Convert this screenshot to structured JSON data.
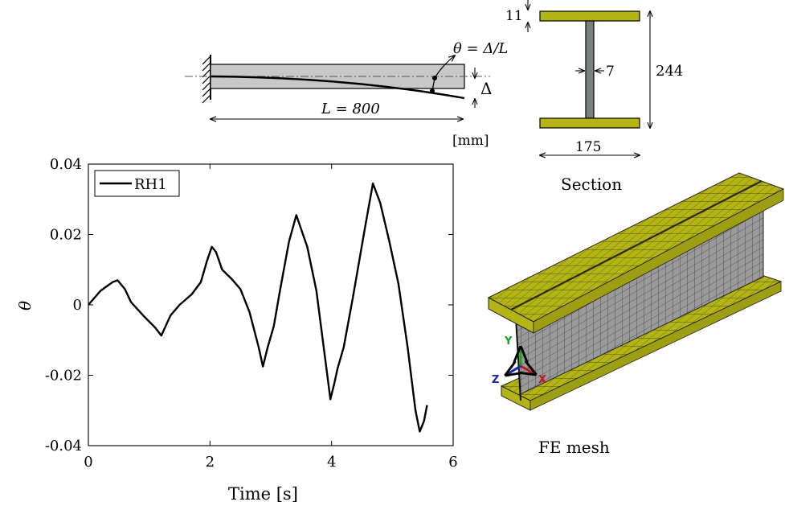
{
  "beam": {
    "theta_label": "θ = Δ/L",
    "delta_label": "Δ",
    "length_label": "L = 800",
    "units_label": "[mm]"
  },
  "section": {
    "top_flange_thickness": "11",
    "web_thickness": "7",
    "height": "244",
    "width": "175",
    "caption": "Section"
  },
  "mesh": {
    "caption": "FE mesh",
    "axis_x": "X",
    "axis_y": "Y",
    "axis_z": "Z",
    "colors": {
      "flange": "#b4b414",
      "web": "#9a9a9a",
      "mesh_line": "#333333"
    }
  },
  "chart_data": {
    "type": "line",
    "xlabel": "Time [s]",
    "ylabel": "θ",
    "xlim": [
      0,
      6
    ],
    "ylim": [
      -0.04,
      0.04
    ],
    "xticks": [
      "0",
      "2",
      "4",
      "6"
    ],
    "yticks": [
      "0.04",
      "0.02",
      "0",
      "-0.02",
      "-0.04"
    ],
    "legend_position": "top-left",
    "series": [
      {
        "name": "RH1",
        "color": "#000000",
        "x": [
          0,
          0.2,
          0.4,
          0.48,
          0.6,
          0.7,
          0.9,
          1.1,
          1.2,
          1.35,
          1.5,
          1.7,
          1.85,
          1.95,
          2.03,
          2.1,
          2.2,
          2.35,
          2.5,
          2.65,
          2.8,
          2.87,
          2.95,
          3.05,
          3.15,
          3.3,
          3.42,
          3.5,
          3.6,
          3.75,
          3.9,
          3.98,
          4.05,
          4.1,
          4.2,
          4.35,
          4.55,
          4.68,
          4.8,
          4.95,
          5.1,
          5.25,
          5.38,
          5.45,
          5.52,
          5.57
        ],
        "y": [
          0,
          0.004,
          0.0065,
          0.007,
          0.0045,
          0.0008,
          -0.003,
          -0.0065,
          -0.0087,
          -0.003,
          0,
          0.003,
          0.0065,
          0.0125,
          0.0165,
          0.015,
          0.01,
          0.0075,
          0.0045,
          -0.002,
          -0.012,
          -0.0175,
          -0.012,
          -0.006,
          0.004,
          0.018,
          0.0255,
          0.0215,
          0.0165,
          0.004,
          -0.016,
          -0.0268,
          -0.022,
          -0.018,
          -0.012,
          0.002,
          0.022,
          0.0345,
          0.029,
          0.018,
          0.006,
          -0.012,
          -0.03,
          -0.036,
          -0.033,
          -0.0285
        ]
      }
    ]
  }
}
